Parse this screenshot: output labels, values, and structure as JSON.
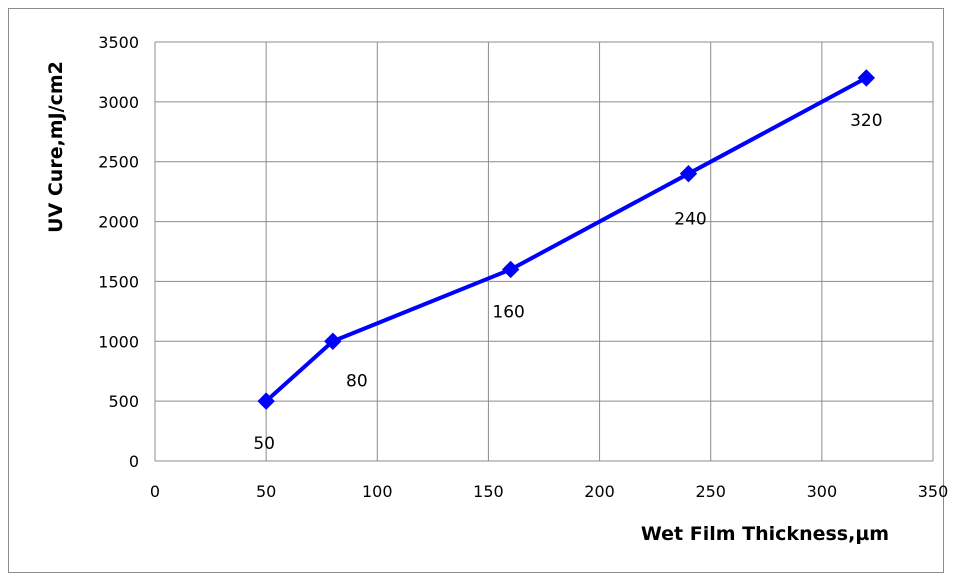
{
  "chart_data": {
    "type": "line",
    "title": "",
    "xlabel": "Wet Film Thickness,µm",
    "ylabel": "UV Cure,mJ/cm2",
    "xlim": [
      0,
      350
    ],
    "ylim": [
      0,
      3500
    ],
    "xticks": [
      "0",
      "50",
      "100",
      "150",
      "200",
      "250",
      "300",
      "350"
    ],
    "yticks": [
      "0",
      "500",
      "1000",
      "1500",
      "2000",
      "2500",
      "3000",
      "3500"
    ],
    "grid": true,
    "legend": "none",
    "color": "#0000ff",
    "marker": "diamond",
    "series": [
      {
        "x": [
          50,
          80,
          160,
          240,
          320
        ],
        "y": [
          500,
          1000,
          1600,
          2400,
          3200
        ],
        "labels": [
          "50",
          "80",
          "160",
          "240",
          "320"
        ]
      }
    ]
  }
}
